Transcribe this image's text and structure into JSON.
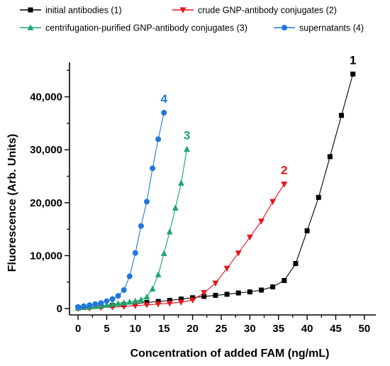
{
  "chart_data": {
    "type": "line",
    "title": "",
    "xlabel": "Concentration of added FAM (ng/mL)",
    "ylabel": "Fluorescence (Arb. Units)",
    "xlim": [
      -1.5,
      52
    ],
    "ylim": [
      -1200,
      46500
    ],
    "xticks": [
      0,
      5,
      10,
      15,
      20,
      25,
      30,
      35,
      40,
      45,
      50
    ],
    "yticks": [
      0,
      10000,
      20000,
      30000,
      40000
    ],
    "xtick_labels": [
      "0",
      "5",
      "10",
      "15",
      "20",
      "25",
      "30",
      "35",
      "40",
      "45",
      "50"
    ],
    "ytick_labels": [
      "0",
      "10,000",
      "20,000",
      "30,000",
      "40,000"
    ],
    "grid": false,
    "legend_position": "top",
    "series": [
      {
        "name": "initial antibodies (1)",
        "label": "1",
        "color": "#000000",
        "marker": "square",
        "x": [
          0,
          2,
          4,
          6,
          8,
          10,
          12,
          14,
          16,
          18,
          20,
          22,
          24,
          26,
          28,
          30,
          32,
          34,
          36,
          38,
          40,
          42,
          44,
          46,
          48
        ],
        "y": [
          200,
          300,
          450,
          600,
          750,
          950,
          1150,
          1350,
          1550,
          1800,
          2050,
          2300,
          2500,
          2700,
          2950,
          3150,
          3500,
          4100,
          5300,
          8500,
          14700,
          21000,
          28700,
          36500,
          44300
        ]
      },
      {
        "name": "crude GNP-antibody conjugates (2)",
        "label": "2",
        "color": "#e8141e",
        "marker": "triangle-down",
        "x": [
          0,
          2,
          4,
          6,
          8,
          10,
          12,
          14,
          16,
          18,
          20,
          22,
          24,
          26,
          28,
          30,
          32,
          34,
          36
        ],
        "y": [
          0,
          100,
          200,
          300,
          400,
          550,
          700,
          850,
          1000,
          1200,
          1600,
          3000,
          4800,
          7600,
          10500,
          13500,
          16500,
          20200,
          23500
        ]
      },
      {
        "name": "centrifugation-purified GNP-antibody conjugates (3)",
        "label": "3",
        "color": "#1aa56a",
        "marker": "triangle-up",
        "x": [
          0,
          1,
          2,
          3,
          4,
          5,
          6,
          7,
          8,
          9,
          10,
          11,
          12,
          13,
          14,
          15,
          16,
          17,
          18,
          19
        ],
        "y": [
          100,
          200,
          300,
          400,
          500,
          650,
          800,
          950,
          1100,
          1250,
          1400,
          1650,
          2200,
          3700,
          6400,
          10400,
          14500,
          19000,
          23700,
          30100
        ]
      },
      {
        "name": "supernatants (4)",
        "label": "4",
        "color": "#1f77e0",
        "marker": "circle",
        "x": [
          0,
          1,
          2,
          3,
          4,
          5,
          6,
          7,
          8,
          9,
          10,
          11,
          12,
          13,
          14,
          15
        ],
        "y": [
          300,
          450,
          650,
          850,
          1050,
          1400,
          1800,
          2400,
          3500,
          6100,
          10500,
          15600,
          20200,
          26500,
          32000,
          37000
        ]
      }
    ]
  },
  "legend": [
    {
      "label": "initial antibodies (1)"
    },
    {
      "label": "crude GNP-antibody conjugates (2)"
    },
    {
      "label": "centrifugation-purified GNP-antibody conjugates (3)"
    },
    {
      "label": "supernatants (4)"
    }
  ]
}
